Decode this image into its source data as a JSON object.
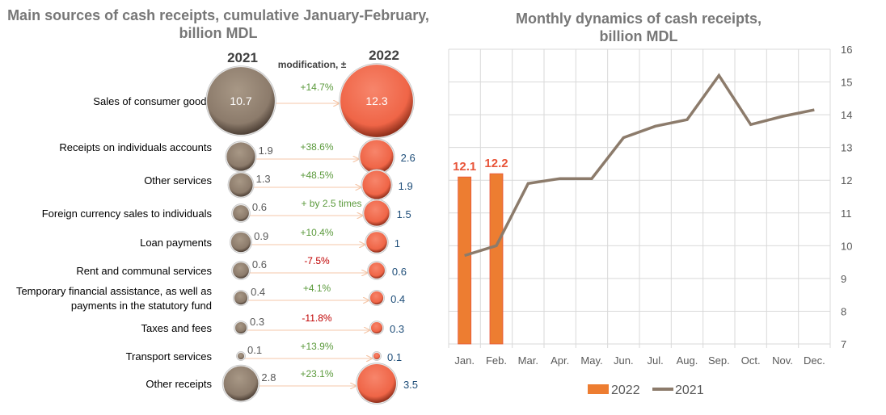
{
  "left_chart": {
    "title_line1": "Main sources of cash receipts, cumulative January-February,",
    "title_line2": "billion MDL",
    "col_2021": "2021",
    "col_2022": "2022",
    "col_change": "modification, ±",
    "colors": {
      "y2021": "#8c7b6b",
      "y2022": "#f0674a",
      "positive": "#5b9a3c",
      "negative": "#c00000",
      "value2022": "#1f4e79"
    }
  },
  "right_chart": {
    "title_line1": "Monthly dynamics of cash receipts,",
    "title_line2": "billion MDL"
  },
  "chart_data": [
    {
      "type": "bubble",
      "title": "Main sources of cash receipts, cumulative January-February, billion MDL",
      "categories": [
        {
          "label": [
            "Sales of consumer goods"
          ],
          "v2021": 10.7,
          "v2022": 12.3,
          "change": "+14.7%",
          "neg": false
        },
        {
          "label": [
            "Receipts on individuals accounts"
          ],
          "v2021": 1.9,
          "v2022": 2.6,
          "change": "+38.6%",
          "neg": false
        },
        {
          "label": [
            "Other services"
          ],
          "v2021": 1.3,
          "v2022": 1.9,
          "change": "+48.5%",
          "neg": false
        },
        {
          "label": [
            "Foreign currency sales to individuals"
          ],
          "v2021": 0.6,
          "v2022": 1.5,
          "change": "+ by 2.5 times",
          "neg": false
        },
        {
          "label": [
            "Loan payments"
          ],
          "v2021": 0.9,
          "v2022": 1.0,
          "change": "+10.4%",
          "neg": false
        },
        {
          "label": [
            "Rent and communal services"
          ],
          "v2021": 0.6,
          "v2022": 0.6,
          "change": "-7.5%",
          "neg": true
        },
        {
          "label": [
            "Temporary financial assistance, as well as",
            "payments in the statutory fund"
          ],
          "v2021": 0.4,
          "v2022": 0.4,
          "change": "+4.1%",
          "neg": false
        },
        {
          "label": [
            "Taxes and fees"
          ],
          "v2021": 0.3,
          "v2022": 0.3,
          "change": "-11.8%",
          "neg": true
        },
        {
          "label": [
            "Transport services"
          ],
          "v2021": 0.1,
          "v2022": 0.1,
          "change": "+13.9%",
          "neg": false
        },
        {
          "label": [
            "Other receipts"
          ],
          "v2021": 2.8,
          "v2022": 3.5,
          "change": "+23.1%",
          "neg": false
        }
      ]
    },
    {
      "type": "bar+line",
      "title": "Monthly dynamics of cash receipts, billion MDL",
      "categories": [
        "Jan.",
        "Feb.",
        "Mar.",
        "Apr.",
        "May.",
        "Jun.",
        "Jul.",
        "Aug.",
        "Sep.",
        "Oct.",
        "Nov.",
        "Dec."
      ],
      "series": [
        {
          "name": "2022",
          "type": "bar",
          "color": "#ed7d31",
          "label_color": "#e8553a",
          "values": [
            12.1,
            12.2,
            null,
            null,
            null,
            null,
            null,
            null,
            null,
            null,
            null,
            null
          ],
          "labels": [
            "12.1",
            "12.2"
          ]
        },
        {
          "name": "2021",
          "type": "line",
          "color": "#8c7b6b",
          "values": [
            9.7,
            10.0,
            11.9,
            12.05,
            12.05,
            13.3,
            13.65,
            13.85,
            15.2,
            13.7,
            13.95,
            14.15
          ],
          "labels": {
            "Jan.": "9.7",
            "Dec.": "14.2"
          }
        }
      ],
      "yticks": [
        "7",
        "8",
        "9",
        "10",
        "11",
        "12",
        "13",
        "14",
        "15",
        "16"
      ],
      "ylim": [
        7,
        16
      ],
      "y_axis_side": "right",
      "grid": true,
      "legend": "bottom"
    }
  ]
}
